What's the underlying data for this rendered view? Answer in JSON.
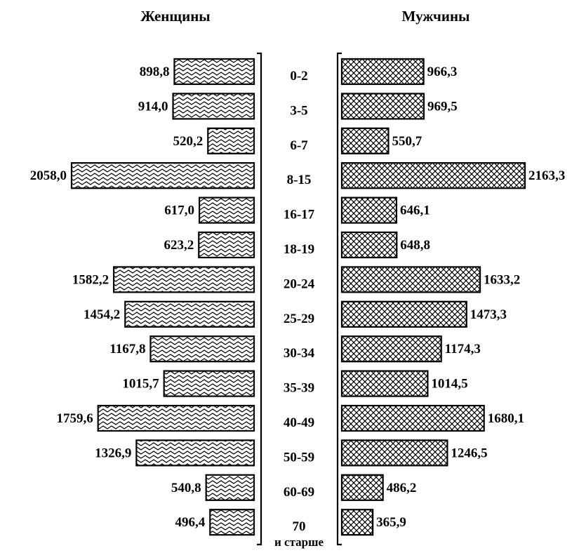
{
  "chart_data": {
    "type": "bar",
    "orientation": "horizontal-pyramid",
    "left_title": "Женщины",
    "right_title": "Мужчины",
    "categories": [
      "0-2",
      "3-5",
      "6-7",
      "8-15",
      "16-17",
      "18-19",
      "20-24",
      "25-29",
      "30-34",
      "35-39",
      "40-49",
      "50-59",
      "60-69",
      "70"
    ],
    "last_category_sub": "и старше",
    "series": [
      {
        "name": "Женщины",
        "side": "left",
        "values": [
          898.8,
          914.0,
          520.2,
          2058.0,
          617.0,
          623.2,
          1582.2,
          1454.2,
          1167.8,
          1015.7,
          1759.6,
          1326.9,
          540.8,
          496.4
        ],
        "labels": [
          "898,8",
          "914,0",
          "520,2",
          "2058,0",
          "617,0",
          "623,2",
          "1582,2",
          "1454,2",
          "1167,8",
          "1015,7",
          "1759,6",
          "1326,9",
          "540,8",
          "496,4"
        ]
      },
      {
        "name": "Мужчины",
        "side": "right",
        "values": [
          966.3,
          969.5,
          550.7,
          2163.3,
          646.1,
          648.8,
          1633.2,
          1473.3,
          1174.3,
          1014.5,
          1680.1,
          1246.5,
          486.2,
          365.9
        ],
        "labels": [
          "966,3",
          "969,5",
          "550,7",
          "2163,3",
          "646,1",
          "648,8",
          "1633,2",
          "1473,3",
          "1174,3",
          "1014,5",
          "1680,1",
          "1246,5",
          "486,2",
          "365,9"
        ]
      }
    ],
    "colors": {
      "bars": "#000000",
      "background": "#ffffff"
    }
  }
}
